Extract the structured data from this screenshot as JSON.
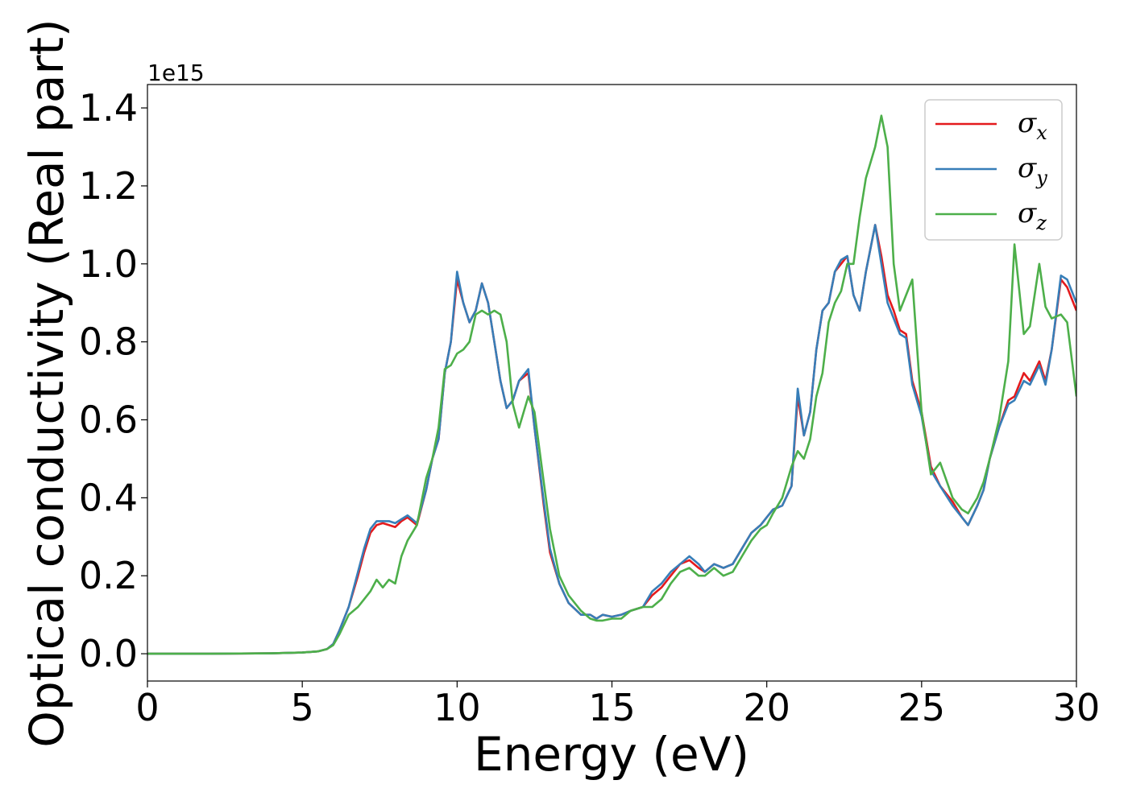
{
  "chart_data": {
    "type": "line",
    "title": "",
    "xlabel": "Energy (eV)",
    "ylabel": "Optical conductivity (Real part)",
    "y_offset_label": "1e15",
    "xlim": [
      0,
      30
    ],
    "ylim": [
      -0.07,
      1.46
    ],
    "xticks": [
      0,
      5,
      10,
      15,
      20,
      25,
      30
    ],
    "xtick_labels": [
      "0",
      "5",
      "10",
      "15",
      "20",
      "25",
      "30"
    ],
    "yticks": [
      0.0,
      0.2,
      0.4,
      0.6,
      0.8,
      1.0,
      1.2,
      1.4
    ],
    "ytick_labels": [
      "0.0",
      "0.2",
      "0.4",
      "0.6",
      "0.8",
      "1.0",
      "1.2",
      "1.4"
    ],
    "grid": false,
    "legend_position": "top-right",
    "series": [
      {
        "name": "σx",
        "label_base": "σ",
        "label_sub": "x",
        "color": "#e41a1c",
        "x": [
          0,
          2,
          4,
          5,
          5.5,
          5.8,
          6.0,
          6.2,
          6.5,
          6.8,
          7.0,
          7.2,
          7.4,
          7.6,
          7.8,
          8.0,
          8.2,
          8.4,
          8.7,
          9.0,
          9.2,
          9.4,
          9.6,
          9.8,
          10.0,
          10.2,
          10.4,
          10.6,
          10.8,
          11.0,
          11.2,
          11.4,
          11.6,
          11.8,
          12.0,
          12.3,
          12.5,
          12.8,
          13.0,
          13.3,
          13.6,
          14.0,
          14.3,
          14.5,
          14.7,
          15.0,
          15.3,
          15.6,
          16.0,
          16.3,
          16.6,
          16.9,
          17.2,
          17.5,
          17.8,
          18.0,
          18.3,
          18.6,
          18.9,
          19.2,
          19.5,
          19.8,
          20.0,
          20.2,
          20.5,
          20.8,
          21.0,
          21.2,
          21.4,
          21.6,
          21.8,
          22.0,
          22.2,
          22.4,
          22.6,
          22.8,
          23.0,
          23.2,
          23.5,
          23.7,
          23.9,
          24.1,
          24.3,
          24.5,
          24.7,
          25.0,
          25.3,
          25.6,
          26.0,
          26.3,
          26.5,
          26.8,
          27.0,
          27.2,
          27.5,
          27.8,
          28.0,
          28.3,
          28.5,
          28.8,
          29.0,
          29.2,
          29.5,
          29.7,
          30.0
        ],
        "y": [
          0,
          0,
          0.001,
          0.003,
          0.006,
          0.012,
          0.025,
          0.06,
          0.12,
          0.2,
          0.26,
          0.31,
          0.33,
          0.335,
          0.33,
          0.325,
          0.34,
          0.35,
          0.33,
          0.42,
          0.5,
          0.55,
          0.72,
          0.8,
          0.96,
          0.9,
          0.85,
          0.88,
          0.95,
          0.9,
          0.8,
          0.7,
          0.63,
          0.65,
          0.7,
          0.72,
          0.58,
          0.38,
          0.26,
          0.18,
          0.13,
          0.1,
          0.1,
          0.09,
          0.1,
          0.095,
          0.1,
          0.11,
          0.12,
          0.15,
          0.17,
          0.2,
          0.23,
          0.24,
          0.22,
          0.21,
          0.23,
          0.22,
          0.23,
          0.27,
          0.31,
          0.33,
          0.35,
          0.37,
          0.38,
          0.43,
          0.66,
          0.56,
          0.62,
          0.78,
          0.88,
          0.9,
          0.98,
          1.0,
          1.02,
          0.92,
          0.88,
          0.98,
          1.1,
          1.02,
          0.92,
          0.88,
          0.83,
          0.82,
          0.7,
          0.62,
          0.48,
          0.43,
          0.39,
          0.35,
          0.33,
          0.38,
          0.42,
          0.5,
          0.58,
          0.65,
          0.66,
          0.72,
          0.7,
          0.75,
          0.7,
          0.78,
          0.96,
          0.94,
          0.88
        ]
      },
      {
        "name": "σy",
        "label_base": "σ",
        "label_sub": "y",
        "color": "#377eb8",
        "x": [
          0,
          2,
          4,
          5,
          5.5,
          5.8,
          6.0,
          6.2,
          6.5,
          6.8,
          7.0,
          7.2,
          7.4,
          7.6,
          7.8,
          8.0,
          8.2,
          8.4,
          8.7,
          9.0,
          9.2,
          9.4,
          9.6,
          9.8,
          10.0,
          10.2,
          10.4,
          10.6,
          10.8,
          11.0,
          11.2,
          11.4,
          11.6,
          11.8,
          12.0,
          12.3,
          12.5,
          12.8,
          13.0,
          13.3,
          13.6,
          14.0,
          14.3,
          14.5,
          14.7,
          15.0,
          15.3,
          15.6,
          16.0,
          16.3,
          16.6,
          16.9,
          17.2,
          17.5,
          17.8,
          18.0,
          18.3,
          18.6,
          18.9,
          19.2,
          19.5,
          19.8,
          20.0,
          20.2,
          20.5,
          20.8,
          21.0,
          21.2,
          21.4,
          21.6,
          21.8,
          22.0,
          22.2,
          22.4,
          22.6,
          22.8,
          23.0,
          23.2,
          23.5,
          23.7,
          23.9,
          24.1,
          24.3,
          24.5,
          24.7,
          25.0,
          25.3,
          25.6,
          26.0,
          26.3,
          26.5,
          26.8,
          27.0,
          27.2,
          27.5,
          27.8,
          28.0,
          28.3,
          28.5,
          28.8,
          29.0,
          29.2,
          29.5,
          29.7,
          30.0
        ],
        "y": [
          0,
          0,
          0.001,
          0.003,
          0.006,
          0.012,
          0.025,
          0.06,
          0.12,
          0.21,
          0.27,
          0.32,
          0.34,
          0.34,
          0.34,
          0.335,
          0.345,
          0.355,
          0.335,
          0.42,
          0.5,
          0.55,
          0.72,
          0.8,
          0.98,
          0.9,
          0.85,
          0.88,
          0.95,
          0.9,
          0.8,
          0.7,
          0.63,
          0.65,
          0.7,
          0.73,
          0.58,
          0.39,
          0.27,
          0.18,
          0.13,
          0.1,
          0.1,
          0.09,
          0.1,
          0.095,
          0.1,
          0.11,
          0.12,
          0.16,
          0.18,
          0.21,
          0.23,
          0.25,
          0.23,
          0.21,
          0.23,
          0.22,
          0.23,
          0.27,
          0.31,
          0.33,
          0.35,
          0.37,
          0.38,
          0.43,
          0.68,
          0.56,
          0.62,
          0.78,
          0.88,
          0.9,
          0.98,
          1.01,
          1.02,
          0.92,
          0.88,
          0.98,
          1.1,
          1.0,
          0.9,
          0.86,
          0.82,
          0.81,
          0.69,
          0.61,
          0.47,
          0.43,
          0.38,
          0.35,
          0.33,
          0.38,
          0.42,
          0.5,
          0.58,
          0.64,
          0.65,
          0.7,
          0.69,
          0.74,
          0.69,
          0.78,
          0.97,
          0.96,
          0.9
        ]
      },
      {
        "name": "σz",
        "label_base": "σ",
        "label_sub": "z",
        "color": "#4daf4a",
        "x": [
          0,
          2,
          4,
          5,
          5.5,
          5.8,
          6.0,
          6.2,
          6.5,
          6.8,
          7.0,
          7.2,
          7.4,
          7.6,
          7.8,
          8.0,
          8.2,
          8.4,
          8.7,
          9.0,
          9.2,
          9.4,
          9.6,
          9.8,
          10.0,
          10.2,
          10.4,
          10.6,
          10.8,
          11.0,
          11.2,
          11.4,
          11.6,
          11.8,
          12.0,
          12.3,
          12.5,
          12.8,
          13.0,
          13.3,
          13.6,
          14.0,
          14.3,
          14.5,
          14.7,
          15.0,
          15.3,
          15.6,
          16.0,
          16.3,
          16.6,
          16.9,
          17.2,
          17.5,
          17.8,
          18.0,
          18.3,
          18.6,
          18.9,
          19.2,
          19.5,
          19.8,
          20.0,
          20.2,
          20.5,
          20.8,
          21.0,
          21.2,
          21.4,
          21.6,
          21.8,
          22.0,
          22.2,
          22.4,
          22.6,
          22.8,
          23.0,
          23.2,
          23.5,
          23.7,
          23.9,
          24.1,
          24.3,
          24.5,
          24.7,
          25.0,
          25.3,
          25.6,
          26.0,
          26.3,
          26.5,
          26.8,
          27.0,
          27.2,
          27.5,
          27.8,
          28.0,
          28.3,
          28.5,
          28.8,
          29.0,
          29.2,
          29.5,
          29.7,
          30.0
        ],
        "y": [
          0,
          0,
          0.001,
          0.003,
          0.006,
          0.012,
          0.022,
          0.05,
          0.1,
          0.12,
          0.14,
          0.16,
          0.19,
          0.17,
          0.19,
          0.18,
          0.25,
          0.29,
          0.33,
          0.45,
          0.5,
          0.58,
          0.73,
          0.74,
          0.77,
          0.78,
          0.8,
          0.87,
          0.88,
          0.87,
          0.88,
          0.87,
          0.8,
          0.64,
          0.58,
          0.66,
          0.62,
          0.44,
          0.32,
          0.2,
          0.15,
          0.11,
          0.09,
          0.085,
          0.085,
          0.09,
          0.09,
          0.11,
          0.12,
          0.12,
          0.14,
          0.18,
          0.21,
          0.22,
          0.2,
          0.2,
          0.22,
          0.2,
          0.21,
          0.25,
          0.29,
          0.32,
          0.33,
          0.36,
          0.4,
          0.48,
          0.52,
          0.5,
          0.55,
          0.66,
          0.72,
          0.85,
          0.9,
          0.93,
          1.0,
          1.0,
          1.12,
          1.22,
          1.3,
          1.38,
          1.3,
          1.0,
          0.88,
          0.92,
          0.96,
          0.62,
          0.46,
          0.49,
          0.4,
          0.37,
          0.36,
          0.4,
          0.44,
          0.5,
          0.6,
          0.75,
          1.05,
          0.82,
          0.84,
          1.0,
          0.89,
          0.86,
          0.87,
          0.85,
          0.66
        ]
      }
    ]
  }
}
